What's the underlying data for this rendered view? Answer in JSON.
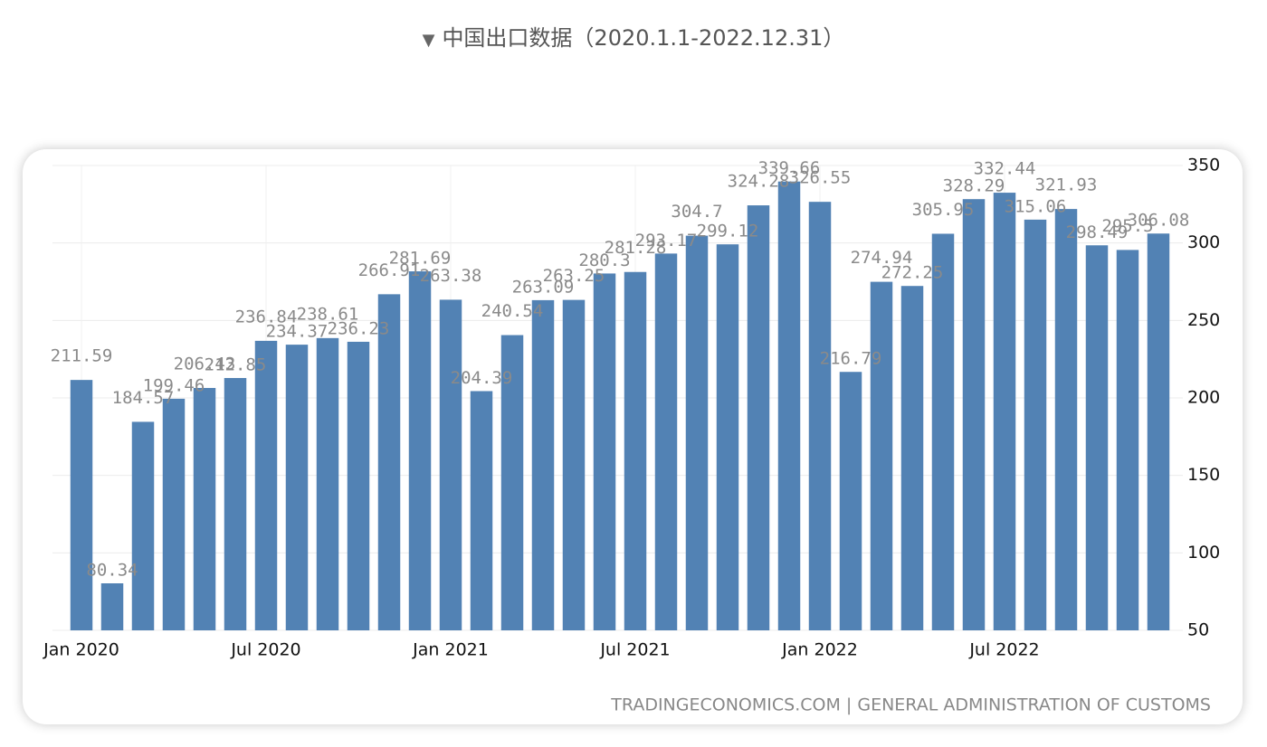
{
  "chart_data": {
    "type": "bar",
    "title": "中国出口数据（2020.1.1-2022.12.31）",
    "source": "TRADINGECONOMICS.COM | GENERAL ADMINISTRATION OF CUSTOMS",
    "categories": [
      "Jan 2020",
      null,
      null,
      null,
      null,
      null,
      "Jul 2020",
      null,
      null,
      null,
      null,
      null,
      "Jan 2021",
      null,
      null,
      null,
      null,
      null,
      "Jul 2021",
      null,
      null,
      null,
      null,
      null,
      "Jan 2022",
      null,
      null,
      null,
      null,
      null,
      "Jul 2022",
      null,
      null,
      null,
      null,
      null
    ],
    "values": [
      211.59,
      80.34,
      184.57,
      199.46,
      206.43,
      212.85,
      236.84,
      234.37,
      238.61,
      236.23,
      266.91,
      281.69,
      263.38,
      204.39,
      240.54,
      263.09,
      263.25,
      280.3,
      281.28,
      293.17,
      304.7,
      299.12,
      324.28,
      339.66,
      326.55,
      216.79,
      274.94,
      272.25,
      305.95,
      328.29,
      332.44,
      315.06,
      321.93,
      298.49,
      295.5,
      306.08
    ],
    "color": "#5282b4",
    "ylim": [
      50,
      350
    ],
    "yticks": [
      50,
      100,
      150,
      200,
      250,
      300,
      350
    ],
    "grid": true
  }
}
